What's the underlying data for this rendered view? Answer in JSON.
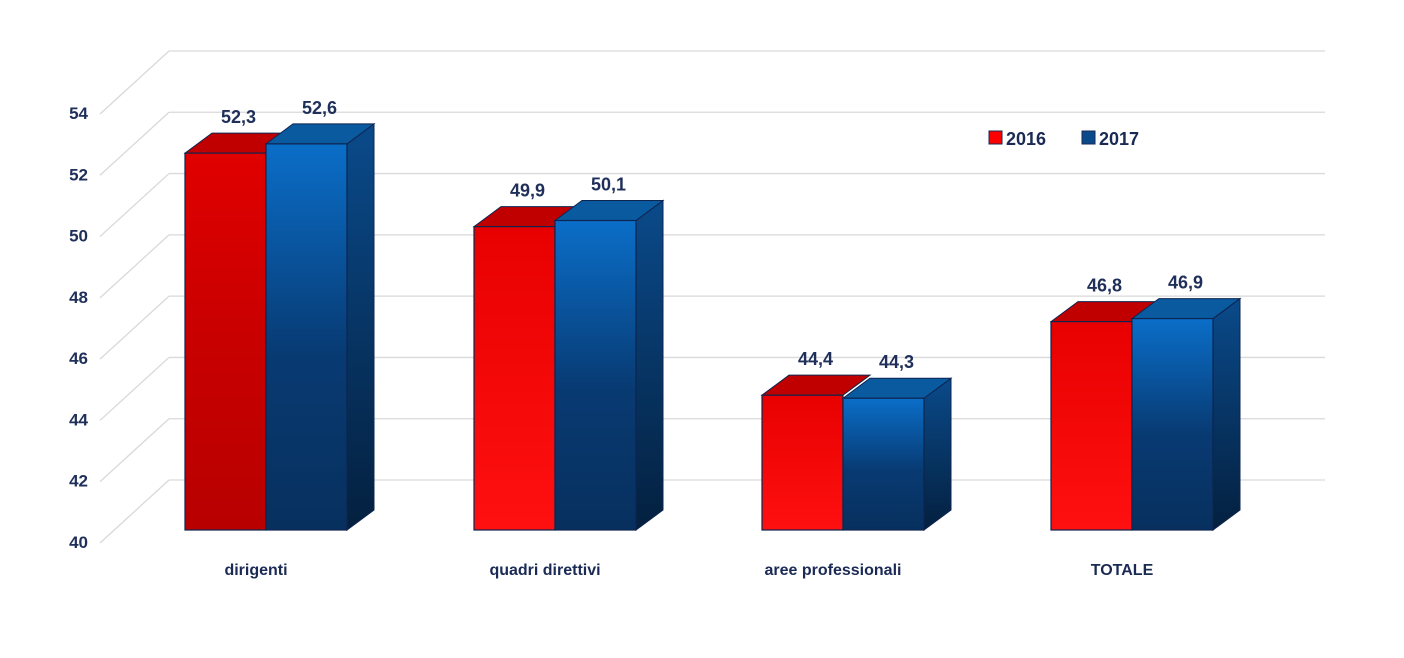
{
  "chart_data": {
    "type": "bar",
    "categories": [
      "dirigenti",
      "quadri direttivi",
      "aree professionali",
      "TOTALE"
    ],
    "series": [
      {
        "name": "2016",
        "values": [
          52.3,
          49.9,
          44.4,
          46.8
        ],
        "labels": [
          "52,3",
          "49,9",
          "44,4",
          "46,8"
        ]
      },
      {
        "name": "2017",
        "values": [
          52.6,
          50.1,
          44.3,
          46.9
        ],
        "labels": [
          "52,6",
          "50,1",
          "44,3",
          "46,9"
        ]
      }
    ],
    "ylim": [
      40,
      54
    ],
    "yticks": [
      "40",
      "42",
      "44",
      "46",
      "48",
      "50",
      "52",
      "54"
    ],
    "grid": true,
    "legend_position": "top-right",
    "colors": {
      "series_2016": "#ff0000",
      "series_2017": "#0a4a8a"
    }
  }
}
